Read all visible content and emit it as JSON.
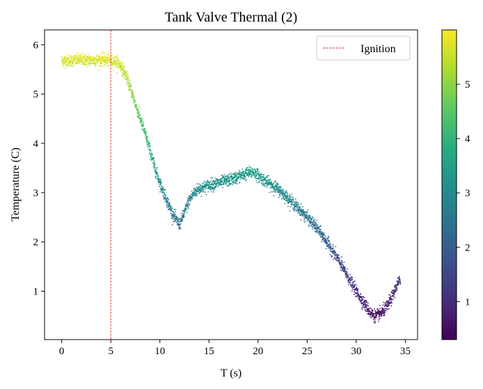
{
  "chart_data": {
    "type": "scatter",
    "title": "Tank Valve Thermal (2)",
    "xlabel": "T (s)",
    "ylabel": "Temperature (C)",
    "xlim": [
      -1.75,
      36.25
    ],
    "ylim": [
      0.02,
      6.3
    ],
    "xticks": [
      0,
      5,
      10,
      15,
      20,
      25,
      30,
      35
    ],
    "yticks": [
      1,
      2,
      3,
      4,
      5,
      6
    ],
    "grid": false,
    "legend": {
      "position": "top-right",
      "entries": [
        {
          "label": "Ignition",
          "style": "dashed",
          "color": "#d62728"
        }
      ]
    },
    "vline": {
      "x": 5,
      "label": "Ignition",
      "color": "#d62728",
      "style": "dashed"
    },
    "colormap": "viridis",
    "color_value": "y",
    "colorbar": {
      "range": [
        0.3,
        6.0
      ],
      "ticks": [
        1,
        2,
        3,
        4,
        5
      ]
    },
    "t_range": [
      0,
      34.5
    ],
    "curve": [
      [
        0.0,
        5.68
      ],
      [
        1.0,
        5.68
      ],
      [
        2.0,
        5.7
      ],
      [
        3.0,
        5.68
      ],
      [
        4.0,
        5.7
      ],
      [
        5.0,
        5.68
      ],
      [
        5.5,
        5.66
      ],
      [
        6.0,
        5.58
      ],
      [
        6.5,
        5.4
      ],
      [
        7.0,
        5.12
      ],
      [
        7.5,
        4.8
      ],
      [
        8.0,
        4.5
      ],
      [
        8.5,
        4.2
      ],
      [
        9.0,
        3.85
      ],
      [
        9.5,
        3.5
      ],
      [
        10.0,
        3.2
      ],
      [
        10.5,
        2.95
      ],
      [
        11.0,
        2.7
      ],
      [
        11.5,
        2.5
      ],
      [
        12.0,
        2.35
      ],
      [
        12.5,
        2.6
      ],
      [
        13.0,
        2.85
      ],
      [
        13.5,
        3.0
      ],
      [
        14.0,
        3.08
      ],
      [
        15.0,
        3.15
      ],
      [
        16.0,
        3.2
      ],
      [
        17.0,
        3.25
      ],
      [
        18.0,
        3.32
      ],
      [
        19.0,
        3.4
      ],
      [
        19.5,
        3.42
      ],
      [
        20.0,
        3.35
      ],
      [
        21.0,
        3.2
      ],
      [
        22.0,
        3.08
      ],
      [
        23.0,
        2.9
      ],
      [
        24.0,
        2.7
      ],
      [
        25.0,
        2.5
      ],
      [
        26.0,
        2.28
      ],
      [
        27.0,
        2.0
      ],
      [
        28.0,
        1.7
      ],
      [
        29.0,
        1.35
      ],
      [
        30.0,
        1.0
      ],
      [
        31.0,
        0.7
      ],
      [
        31.5,
        0.55
      ],
      [
        32.0,
        0.5
      ],
      [
        32.5,
        0.55
      ],
      [
        33.0,
        0.65
      ],
      [
        33.5,
        0.82
      ],
      [
        34.0,
        1.05
      ],
      [
        34.5,
        1.25
      ]
    ],
    "noise_sd": 0.06
  }
}
